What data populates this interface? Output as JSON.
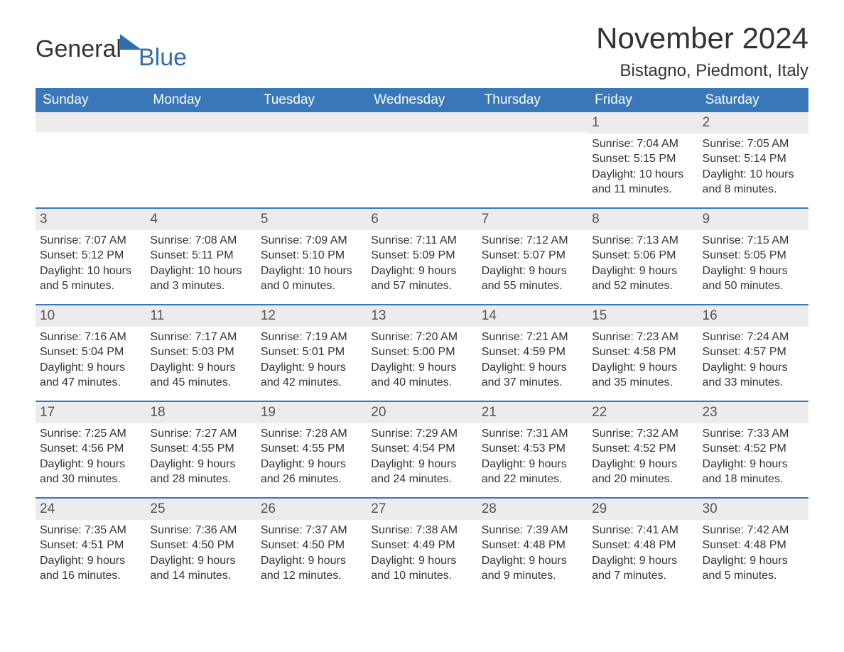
{
  "logo": {
    "text1": "General",
    "text2": "Blue",
    "accent_color": "#2f6fb0"
  },
  "header": {
    "month_title": "November 2024",
    "location": "Bistagno, Piedmont, Italy"
  },
  "styling": {
    "header_bg": "#3878b8",
    "header_text": "#ffffff",
    "date_bar_bg": "#ececec",
    "date_bar_border": "#3878b8",
    "body_text": "#333333",
    "font_family": "Arial",
    "month_title_fontsize": 42,
    "location_fontsize": 24,
    "day_header_fontsize": 19,
    "cell_fontsize": 16
  },
  "day_headers": [
    "Sunday",
    "Monday",
    "Tuesday",
    "Wednesday",
    "Thursday",
    "Friday",
    "Saturday"
  ],
  "weeks": [
    [
      null,
      null,
      null,
      null,
      null,
      {
        "date": "1",
        "sunrise": "Sunrise: 7:04 AM",
        "sunset": "Sunset: 5:15 PM",
        "dl1": "Daylight: 10 hours",
        "dl2": "and 11 minutes."
      },
      {
        "date": "2",
        "sunrise": "Sunrise: 7:05 AM",
        "sunset": "Sunset: 5:14 PM",
        "dl1": "Daylight: 10 hours",
        "dl2": "and 8 minutes."
      }
    ],
    [
      {
        "date": "3",
        "sunrise": "Sunrise: 7:07 AM",
        "sunset": "Sunset: 5:12 PM",
        "dl1": "Daylight: 10 hours",
        "dl2": "and 5 minutes."
      },
      {
        "date": "4",
        "sunrise": "Sunrise: 7:08 AM",
        "sunset": "Sunset: 5:11 PM",
        "dl1": "Daylight: 10 hours",
        "dl2": "and 3 minutes."
      },
      {
        "date": "5",
        "sunrise": "Sunrise: 7:09 AM",
        "sunset": "Sunset: 5:10 PM",
        "dl1": "Daylight: 10 hours",
        "dl2": "and 0 minutes."
      },
      {
        "date": "6",
        "sunrise": "Sunrise: 7:11 AM",
        "sunset": "Sunset: 5:09 PM",
        "dl1": "Daylight: 9 hours",
        "dl2": "and 57 minutes."
      },
      {
        "date": "7",
        "sunrise": "Sunrise: 7:12 AM",
        "sunset": "Sunset: 5:07 PM",
        "dl1": "Daylight: 9 hours",
        "dl2": "and 55 minutes."
      },
      {
        "date": "8",
        "sunrise": "Sunrise: 7:13 AM",
        "sunset": "Sunset: 5:06 PM",
        "dl1": "Daylight: 9 hours",
        "dl2": "and 52 minutes."
      },
      {
        "date": "9",
        "sunrise": "Sunrise: 7:15 AM",
        "sunset": "Sunset: 5:05 PM",
        "dl1": "Daylight: 9 hours",
        "dl2": "and 50 minutes."
      }
    ],
    [
      {
        "date": "10",
        "sunrise": "Sunrise: 7:16 AM",
        "sunset": "Sunset: 5:04 PM",
        "dl1": "Daylight: 9 hours",
        "dl2": "and 47 minutes."
      },
      {
        "date": "11",
        "sunrise": "Sunrise: 7:17 AM",
        "sunset": "Sunset: 5:03 PM",
        "dl1": "Daylight: 9 hours",
        "dl2": "and 45 minutes."
      },
      {
        "date": "12",
        "sunrise": "Sunrise: 7:19 AM",
        "sunset": "Sunset: 5:01 PM",
        "dl1": "Daylight: 9 hours",
        "dl2": "and 42 minutes."
      },
      {
        "date": "13",
        "sunrise": "Sunrise: 7:20 AM",
        "sunset": "Sunset: 5:00 PM",
        "dl1": "Daylight: 9 hours",
        "dl2": "and 40 minutes."
      },
      {
        "date": "14",
        "sunrise": "Sunrise: 7:21 AM",
        "sunset": "Sunset: 4:59 PM",
        "dl1": "Daylight: 9 hours",
        "dl2": "and 37 minutes."
      },
      {
        "date": "15",
        "sunrise": "Sunrise: 7:23 AM",
        "sunset": "Sunset: 4:58 PM",
        "dl1": "Daylight: 9 hours",
        "dl2": "and 35 minutes."
      },
      {
        "date": "16",
        "sunrise": "Sunrise: 7:24 AM",
        "sunset": "Sunset: 4:57 PM",
        "dl1": "Daylight: 9 hours",
        "dl2": "and 33 minutes."
      }
    ],
    [
      {
        "date": "17",
        "sunrise": "Sunrise: 7:25 AM",
        "sunset": "Sunset: 4:56 PM",
        "dl1": "Daylight: 9 hours",
        "dl2": "and 30 minutes."
      },
      {
        "date": "18",
        "sunrise": "Sunrise: 7:27 AM",
        "sunset": "Sunset: 4:55 PM",
        "dl1": "Daylight: 9 hours",
        "dl2": "and 28 minutes."
      },
      {
        "date": "19",
        "sunrise": "Sunrise: 7:28 AM",
        "sunset": "Sunset: 4:55 PM",
        "dl1": "Daylight: 9 hours",
        "dl2": "and 26 minutes."
      },
      {
        "date": "20",
        "sunrise": "Sunrise: 7:29 AM",
        "sunset": "Sunset: 4:54 PM",
        "dl1": "Daylight: 9 hours",
        "dl2": "and 24 minutes."
      },
      {
        "date": "21",
        "sunrise": "Sunrise: 7:31 AM",
        "sunset": "Sunset: 4:53 PM",
        "dl1": "Daylight: 9 hours",
        "dl2": "and 22 minutes."
      },
      {
        "date": "22",
        "sunrise": "Sunrise: 7:32 AM",
        "sunset": "Sunset: 4:52 PM",
        "dl1": "Daylight: 9 hours",
        "dl2": "and 20 minutes."
      },
      {
        "date": "23",
        "sunrise": "Sunrise: 7:33 AM",
        "sunset": "Sunset: 4:52 PM",
        "dl1": "Daylight: 9 hours",
        "dl2": "and 18 minutes."
      }
    ],
    [
      {
        "date": "24",
        "sunrise": "Sunrise: 7:35 AM",
        "sunset": "Sunset: 4:51 PM",
        "dl1": "Daylight: 9 hours",
        "dl2": "and 16 minutes."
      },
      {
        "date": "25",
        "sunrise": "Sunrise: 7:36 AM",
        "sunset": "Sunset: 4:50 PM",
        "dl1": "Daylight: 9 hours",
        "dl2": "and 14 minutes."
      },
      {
        "date": "26",
        "sunrise": "Sunrise: 7:37 AM",
        "sunset": "Sunset: 4:50 PM",
        "dl1": "Daylight: 9 hours",
        "dl2": "and 12 minutes."
      },
      {
        "date": "27",
        "sunrise": "Sunrise: 7:38 AM",
        "sunset": "Sunset: 4:49 PM",
        "dl1": "Daylight: 9 hours",
        "dl2": "and 10 minutes."
      },
      {
        "date": "28",
        "sunrise": "Sunrise: 7:39 AM",
        "sunset": "Sunset: 4:48 PM",
        "dl1": "Daylight: 9 hours",
        "dl2": "and 9 minutes."
      },
      {
        "date": "29",
        "sunrise": "Sunrise: 7:41 AM",
        "sunset": "Sunset: 4:48 PM",
        "dl1": "Daylight: 9 hours",
        "dl2": "and 7 minutes."
      },
      {
        "date": "30",
        "sunrise": "Sunrise: 7:42 AM",
        "sunset": "Sunset: 4:48 PM",
        "dl1": "Daylight: 9 hours",
        "dl2": "and 5 minutes."
      }
    ]
  ]
}
